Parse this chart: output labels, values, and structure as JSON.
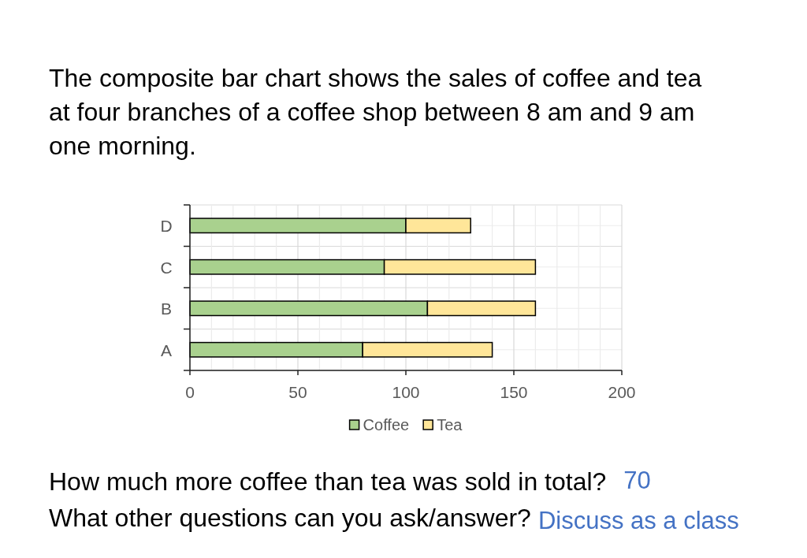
{
  "chart_data": {
    "type": "bar",
    "orientation": "horizontal",
    "stacked": true,
    "title": "The composite bar chart shows the sales of coffee and tea at four branches of a coffee shop between 8 am and 9 am one morning.",
    "categories": [
      "D",
      "C",
      "B",
      "A"
    ],
    "series": [
      {
        "name": "Coffee",
        "color": "#a9d18e",
        "values": [
          100,
          90,
          110,
          80
        ]
      },
      {
        "name": "Tea",
        "color": "#ffe699",
        "values": [
          30,
          70,
          50,
          60
        ]
      }
    ],
    "xlim": [
      0,
      200
    ],
    "xticks": [
      0,
      {
        "value": 10,
        "label": null
      },
      {
        "value": 20,
        "label": null
      },
      {
        "value": 30,
        "label": null
      },
      {
        "value": 40,
        "label": null
      },
      50,
      {
        "value": 60,
        "label": null
      },
      {
        "value": 70,
        "label": null
      },
      {
        "value": 80,
        "label": null
      },
      {
        "value": 90,
        "label": null
      },
      100,
      {
        "value": 110,
        "label": null
      },
      {
        "value": 120,
        "label": null
      },
      {
        "value": 130,
        "label": null
      },
      {
        "value": 140,
        "label": null
      },
      150,
      {
        "value": 160,
        "label": null
      },
      {
        "value": 170,
        "label": null
      },
      {
        "value": 180,
        "label": null
      },
      {
        "value": 190,
        "label": null
      },
      200
    ],
    "grid": true,
    "legend": "bottom",
    "annotations": [
      "How much more coffee than tea was sold in total?",
      "70",
      "What other questions can you ask/answer?",
      "Discuss as a class"
    ]
  }
}
